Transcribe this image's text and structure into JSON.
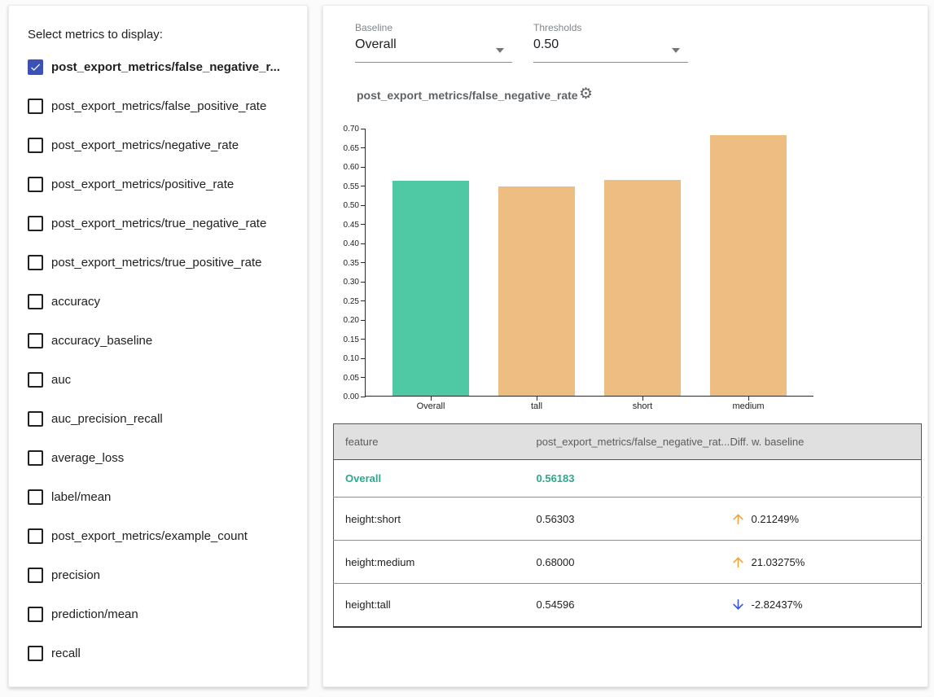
{
  "sidebar": {
    "title": "Select metrics to display:",
    "metrics": [
      {
        "label": "post_export_metrics/false_negative_r...",
        "checked": true
      },
      {
        "label": "post_export_metrics/false_positive_rate",
        "checked": false
      },
      {
        "label": "post_export_metrics/negative_rate",
        "checked": false
      },
      {
        "label": "post_export_metrics/positive_rate",
        "checked": false
      },
      {
        "label": "post_export_metrics/true_negative_rate",
        "checked": false
      },
      {
        "label": "post_export_metrics/true_positive_rate",
        "checked": false
      },
      {
        "label": "accuracy",
        "checked": false
      },
      {
        "label": "accuracy_baseline",
        "checked": false
      },
      {
        "label": "auc",
        "checked": false
      },
      {
        "label": "auc_precision_recall",
        "checked": false
      },
      {
        "label": "average_loss",
        "checked": false
      },
      {
        "label": "label/mean",
        "checked": false
      },
      {
        "label": "post_export_metrics/example_count",
        "checked": false
      },
      {
        "label": "precision",
        "checked": false
      },
      {
        "label": "prediction/mean",
        "checked": false
      },
      {
        "label": "recall",
        "checked": false
      }
    ]
  },
  "controls": {
    "baseline_label": "Baseline",
    "baseline_value": "Overall",
    "thresholds_label": "Thresholds",
    "thresholds_value": "0.50"
  },
  "chart_data": {
    "type": "bar",
    "title": "post_export_metrics/false_negative_rate",
    "categories": [
      "Overall",
      "tall",
      "short",
      "medium"
    ],
    "values": [
      0.56183,
      0.54596,
      0.56303,
      0.68
    ],
    "colors": [
      "#4FC9A4",
      "#EDBD81",
      "#EDBD81",
      "#EDBD81"
    ],
    "ylim": [
      0,
      0.7
    ],
    "ytick_step": 0.05,
    "grid": false,
    "legend": "none"
  },
  "table": {
    "headers": [
      "feature",
      "post_export_metrics/false_negative_rat...",
      "Diff. w. baseline"
    ],
    "rows": [
      {
        "feature": "Overall",
        "value": "0.56183",
        "diff": null,
        "direction": null,
        "baseline": true
      },
      {
        "feature": "height:short",
        "value": "0.56303",
        "diff": "0.21249%",
        "direction": "up",
        "baseline": false
      },
      {
        "feature": "height:medium",
        "value": "0.68000",
        "diff": "21.03275%",
        "direction": "up",
        "baseline": false
      },
      {
        "feature": "height:tall",
        "value": "0.54596",
        "diff": "-2.82437%",
        "direction": "down",
        "baseline": false
      }
    ]
  },
  "icons": {
    "settings": "gear-icon",
    "up": "arrow-up-icon",
    "down": "arrow-down-icon"
  },
  "colors": {
    "checkbox_checked": "#3C51B5",
    "bar_baseline": "#4FC9A4",
    "bar_default": "#EDBD81",
    "baseline_text": "#2EA78C",
    "arrow_up": "#F2A43C",
    "arrow_down": "#3452E1"
  }
}
